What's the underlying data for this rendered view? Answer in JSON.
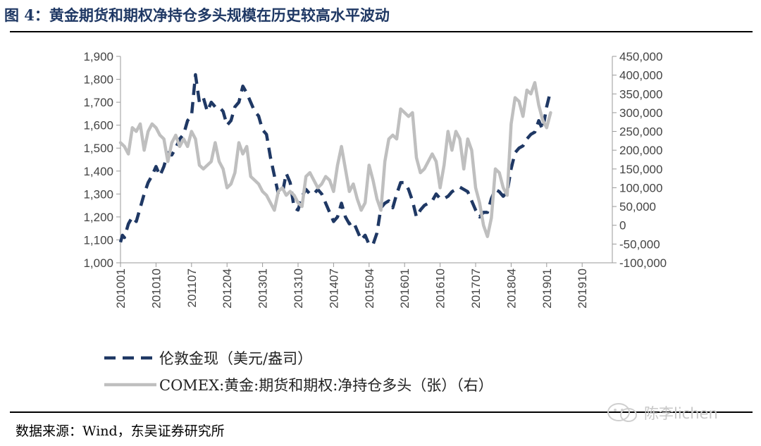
{
  "figure": {
    "title": "图 4：黄金期货和期权净持仓多头规模在历史较高水平波动",
    "source": "数据来源：Wind，东吴证券研究所",
    "watermark": "陈李lichen"
  },
  "chart_data": {
    "type": "line",
    "title": "",
    "xlabel": "",
    "ylabel": "",
    "x_tick_labels": [
      "201001",
      "201010",
      "201107",
      "201204",
      "201301",
      "201310",
      "201407",
      "201504",
      "201601",
      "201610",
      "201707",
      "201804",
      "201901",
      "201910"
    ],
    "y_left": {
      "ylim": [
        1000,
        1900
      ],
      "ticks": [
        "1,000",
        "1,100",
        "1,200",
        "1,300",
        "1,400",
        "1,500",
        "1,600",
        "1,700",
        "1,800",
        "1,900"
      ]
    },
    "y_right": {
      "ylim": [
        -100000,
        450000
      ],
      "ticks": [
        "-100,000",
        "-50,000",
        "0",
        "50,000",
        "100,000",
        "150,000",
        "200,000",
        "250,000",
        "300,000",
        "350,000",
        "400,000",
        "450,000"
      ]
    },
    "series": [
      {
        "name": "伦敦金现（美元/盎司）",
        "axis": "left",
        "color": "#1f3864",
        "style": "dashed",
        "values": [
          [
            0,
            1090
          ],
          [
            0.5,
            1120
          ],
          [
            1,
            1110
          ],
          [
            2,
            1170
          ],
          [
            3,
            1200
          ],
          [
            4,
            1180
          ],
          [
            5,
            1240
          ],
          [
            6,
            1300
          ],
          [
            7,
            1350
          ],
          [
            8,
            1380
          ],
          [
            9,
            1420
          ],
          [
            10,
            1380
          ],
          [
            11,
            1420
          ],
          [
            12,
            1480
          ],
          [
            13,
            1470
          ],
          [
            14,
            1500
          ],
          [
            15,
            1540
          ],
          [
            16,
            1560
          ],
          [
            17,
            1620
          ],
          [
            18,
            1640
          ],
          [
            19,
            1820
          ],
          [
            20,
            1700
          ],
          [
            21,
            1720
          ],
          [
            22,
            1660
          ],
          [
            23,
            1700
          ],
          [
            24,
            1680
          ],
          [
            25,
            1680
          ],
          [
            26,
            1660
          ],
          [
            27,
            1600
          ],
          [
            28,
            1620
          ],
          [
            29,
            1680
          ],
          [
            30,
            1700
          ],
          [
            31,
            1770
          ],
          [
            32,
            1740
          ],
          [
            33,
            1700
          ],
          [
            34,
            1660
          ],
          [
            35,
            1640
          ],
          [
            36,
            1580
          ],
          [
            37,
            1560
          ],
          [
            38,
            1460
          ],
          [
            39,
            1380
          ],
          [
            40,
            1300
          ],
          [
            41,
            1300
          ],
          [
            42,
            1390
          ],
          [
            43,
            1350
          ],
          [
            44,
            1240
          ],
          [
            45,
            1230
          ],
          [
            46,
            1290
          ],
          [
            47,
            1320
          ],
          [
            48,
            1300
          ],
          [
            49,
            1300
          ],
          [
            50,
            1320
          ],
          [
            51,
            1300
          ],
          [
            52,
            1260
          ],
          [
            53,
            1220
          ],
          [
            54,
            1180
          ],
          [
            55,
            1200
          ],
          [
            56,
            1260
          ],
          [
            57,
            1200
          ],
          [
            58,
            1170
          ],
          [
            59,
            1180
          ],
          [
            60,
            1140
          ],
          [
            61,
            1100
          ],
          [
            62,
            1120
          ],
          [
            63,
            1080
          ],
          [
            64,
            1080
          ],
          [
            65,
            1130
          ],
          [
            66,
            1240
          ],
          [
            67,
            1260
          ],
          [
            68,
            1270
          ],
          [
            69,
            1240
          ],
          [
            70,
            1300
          ],
          [
            71,
            1350
          ],
          [
            72,
            1350
          ],
          [
            73,
            1320
          ],
          [
            74,
            1270
          ],
          [
            75,
            1200
          ],
          [
            76,
            1230
          ],
          [
            77,
            1250
          ],
          [
            78,
            1260
          ],
          [
            79,
            1270
          ],
          [
            80,
            1300
          ],
          [
            81,
            1280
          ],
          [
            82,
            1280
          ],
          [
            83,
            1290
          ],
          [
            84,
            1310
          ],
          [
            85,
            1320
          ],
          [
            86,
            1330
          ],
          [
            87,
            1320
          ],
          [
            88,
            1310
          ],
          [
            89,
            1270
          ],
          [
            90,
            1230
          ],
          [
            91,
            1200
          ],
          [
            92,
            1220
          ],
          [
            93,
            1220
          ],
          [
            94,
            1280
          ],
          [
            95,
            1320
          ],
          [
            96,
            1310
          ],
          [
            97,
            1290
          ],
          [
            98,
            1310
          ],
          [
            99,
            1410
          ],
          [
            100,
            1480
          ],
          [
            101,
            1500
          ],
          [
            102,
            1510
          ],
          [
            103,
            1540
          ],
          [
            104,
            1560
          ],
          [
            105,
            1570
          ],
          [
            106,
            1620
          ],
          [
            107,
            1580
          ],
          [
            108,
            1680
          ],
          [
            109,
            1750
          ]
        ]
      },
      {
        "name": "COMEX:黄金:期货和期权:净持仓多头（张）（右）",
        "axis": "right",
        "color": "#bfbfbf",
        "style": "solid",
        "values": [
          [
            0,
            220000
          ],
          [
            1,
            210000
          ],
          [
            2,
            190000
          ],
          [
            3,
            260000
          ],
          [
            4,
            250000
          ],
          [
            5,
            270000
          ],
          [
            6,
            200000
          ],
          [
            7,
            250000
          ],
          [
            8,
            270000
          ],
          [
            9,
            260000
          ],
          [
            10,
            240000
          ],
          [
            11,
            230000
          ],
          [
            12,
            170000
          ],
          [
            13,
            220000
          ],
          [
            14,
            240000
          ],
          [
            15,
            210000
          ],
          [
            16,
            230000
          ],
          [
            17,
            210000
          ],
          [
            18,
            250000
          ],
          [
            19,
            230000
          ],
          [
            20,
            160000
          ],
          [
            21,
            150000
          ],
          [
            22,
            160000
          ],
          [
            23,
            170000
          ],
          [
            24,
            220000
          ],
          [
            25,
            170000
          ],
          [
            26,
            150000
          ],
          [
            27,
            100000
          ],
          [
            28,
            110000
          ],
          [
            29,
            140000
          ],
          [
            30,
            220000
          ],
          [
            31,
            190000
          ],
          [
            32,
            210000
          ],
          [
            33,
            130000
          ],
          [
            34,
            120000
          ],
          [
            35,
            110000
          ],
          [
            36,
            90000
          ],
          [
            37,
            80000
          ],
          [
            38,
            60000
          ],
          [
            39,
            40000
          ],
          [
            40,
            90000
          ],
          [
            41,
            100000
          ],
          [
            42,
            80000
          ],
          [
            43,
            90000
          ],
          [
            44,
            80000
          ],
          [
            45,
            60000
          ],
          [
            46,
            50000
          ],
          [
            47,
            130000
          ],
          [
            48,
            140000
          ],
          [
            49,
            120000
          ],
          [
            50,
            100000
          ],
          [
            51,
            110000
          ],
          [
            52,
            130000
          ],
          [
            53,
            120000
          ],
          [
            54,
            90000
          ],
          [
            55,
            160000
          ],
          [
            56,
            210000
          ],
          [
            57,
            150000
          ],
          [
            58,
            90000
          ],
          [
            59,
            110000
          ],
          [
            60,
            70000
          ],
          [
            61,
            40000
          ],
          [
            62,
            60000
          ],
          [
            63,
            160000
          ],
          [
            64,
            120000
          ],
          [
            65,
            70000
          ],
          [
            66,
            40000
          ],
          [
            67,
            170000
          ],
          [
            68,
            230000
          ],
          [
            69,
            240000
          ],
          [
            70,
            230000
          ],
          [
            71,
            310000
          ],
          [
            72,
            300000
          ],
          [
            73,
            290000
          ],
          [
            74,
            300000
          ],
          [
            75,
            180000
          ],
          [
            76,
            140000
          ],
          [
            77,
            150000
          ],
          [
            78,
            170000
          ],
          [
            79,
            190000
          ],
          [
            80,
            170000
          ],
          [
            81,
            100000
          ],
          [
            82,
            160000
          ],
          [
            83,
            250000
          ],
          [
            84,
            200000
          ],
          [
            85,
            250000
          ],
          [
            86,
            230000
          ],
          [
            87,
            150000
          ],
          [
            88,
            230000
          ],
          [
            89,
            200000
          ],
          [
            90,
            100000
          ],
          [
            91,
            60000
          ],
          [
            92,
            0
          ],
          [
            93,
            -30000
          ],
          [
            94,
            20000
          ],
          [
            95,
            150000
          ],
          [
            96,
            140000
          ],
          [
            97,
            100000
          ],
          [
            98,
            80000
          ],
          [
            99,
            270000
          ],
          [
            100,
            340000
          ],
          [
            101,
            330000
          ],
          [
            102,
            290000
          ],
          [
            103,
            360000
          ],
          [
            104,
            350000
          ],
          [
            105,
            380000
          ],
          [
            106,
            320000
          ],
          [
            107,
            280000
          ],
          [
            108,
            260000
          ],
          [
            109,
            300000
          ]
        ]
      }
    ],
    "legend_position": "bottom",
    "grid": false
  }
}
